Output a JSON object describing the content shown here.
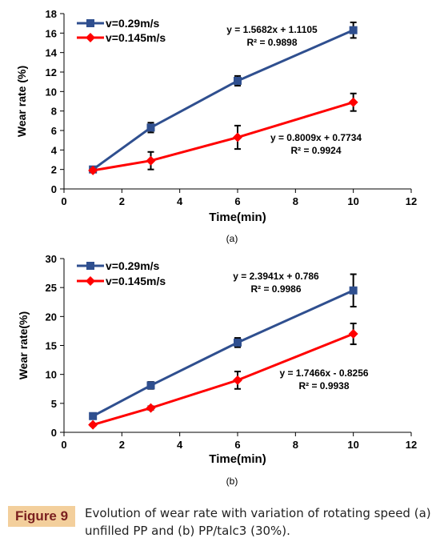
{
  "charts": [
    {
      "panel_label": "(a)",
      "type": "line",
      "xlabel": "Time(min)",
      "ylabel": "Wear rate (%)",
      "xlim": [
        0,
        12
      ],
      "ylim": [
        0,
        18
      ],
      "xticks": [
        0,
        2,
        4,
        6,
        8,
        10,
        12
      ],
      "yticks": [
        0,
        2,
        4,
        6,
        8,
        10,
        12,
        14,
        16,
        18
      ],
      "legend_position": "top-left",
      "series": [
        {
          "name": "v=0.29m/s",
          "color": "#2f4f8f",
          "marker": "square",
          "x": [
            1,
            3,
            6,
            10
          ],
          "y": [
            2.0,
            6.3,
            11.1,
            16.3
          ],
          "err": [
            0.1,
            0.5,
            0.5,
            0.8
          ]
        },
        {
          "name": "v=0.145m/s",
          "color": "#ff0000",
          "marker": "diamond",
          "x": [
            1,
            3,
            6,
            10
          ],
          "y": [
            1.9,
            2.9,
            5.3,
            8.9
          ],
          "err": [
            0.1,
            0.9,
            1.2,
            0.9
          ]
        }
      ],
      "annotations": [
        {
          "line1": "y = 1.5682x + 1.1105",
          "line2": "R² = 0.9898"
        },
        {
          "line1": "y = 0.8009x + 0.7734",
          "line2": "R² = 0.9924"
        }
      ]
    },
    {
      "panel_label": "(b)",
      "type": "line",
      "xlabel": "Time(min)",
      "ylabel": "Wear rate(%)",
      "xlim": [
        0,
        12
      ],
      "ylim": [
        0,
        30
      ],
      "xticks": [
        0,
        2,
        4,
        6,
        8,
        10,
        12
      ],
      "yticks": [
        0,
        5,
        10,
        15,
        20,
        25,
        30
      ],
      "legend_position": "top-left",
      "series": [
        {
          "name": "v=0.29m/s",
          "color": "#2f4f8f",
          "marker": "square",
          "x": [
            1,
            3,
            6,
            10
          ],
          "y": [
            2.8,
            8.1,
            15.5,
            24.5
          ],
          "err": [
            0.2,
            0.6,
            0.8,
            2.8
          ]
        },
        {
          "name": "v=0.145m/s",
          "color": "#ff0000",
          "marker": "diamond",
          "x": [
            1,
            3,
            6,
            10
          ],
          "y": [
            1.3,
            4.2,
            9.0,
            17.0
          ],
          "err": [
            0.2,
            0.3,
            1.5,
            1.8
          ]
        }
      ],
      "annotations": [
        {
          "line1": "y = 2.3941x + 0.786",
          "line2": "R² = 0.9986"
        },
        {
          "line1": "y = 1.7466x - 0.8256",
          "line2": "R² = 0.9938"
        }
      ]
    }
  ],
  "caption": {
    "label": "Figure 9",
    "text": "Evolution of wear rate with variation of rotating speed (a) unfilled PP and (b) PP/talc3 (30%).",
    "label_color": "#7a1f1f",
    "label_bg": "#f3cf9c"
  }
}
